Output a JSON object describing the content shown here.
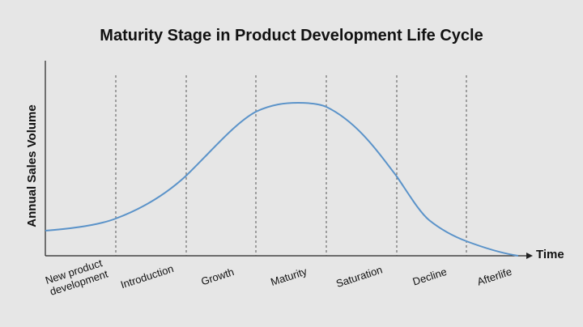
{
  "title": "Maturity Stage in Product Development Life Cycle",
  "y_axis_label": "Annual Sales Volume",
  "x_axis_label": "Time",
  "stages": [
    [
      "New product",
      "development"
    ],
    [
      "Introduction"
    ],
    [
      "Growth"
    ],
    [
      "Maturity"
    ],
    [
      "Saturation"
    ],
    [
      "Decline"
    ],
    [
      "Afterlife"
    ]
  ]
}
